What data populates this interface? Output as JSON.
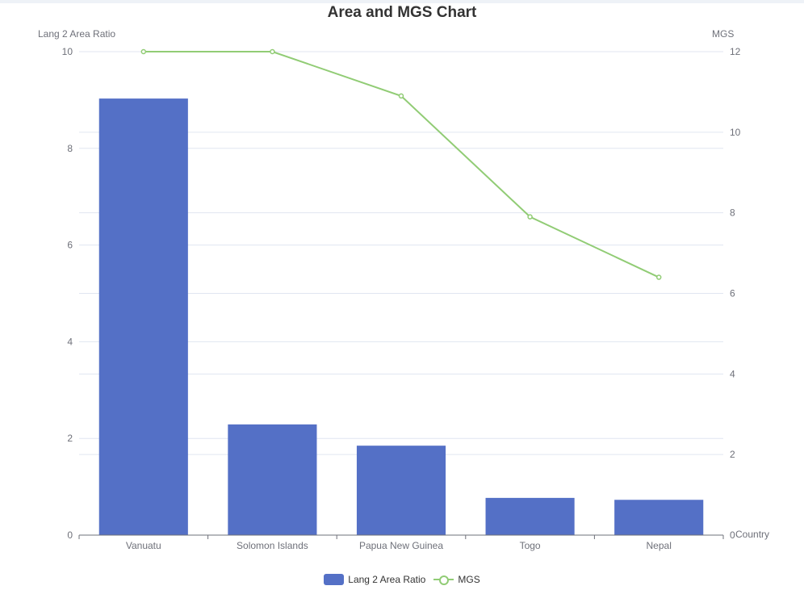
{
  "chart_data": {
    "type": "bar",
    "title": "Area and MGS Chart",
    "xlabel": "Country",
    "categories": [
      "Vanuatu",
      "Solomon Islands",
      "Papua New Guinea",
      "Togo",
      "Nepal"
    ],
    "series": [
      {
        "name": "Lang 2 Area Ratio",
        "type": "bar",
        "axis": "left",
        "color": "#5470c6",
        "values": [
          9.03,
          2.29,
          1.85,
          0.77,
          0.73
        ]
      },
      {
        "name": "MGS",
        "type": "line",
        "axis": "right",
        "color": "#91cc75",
        "values": [
          12.0,
          12.0,
          10.9,
          7.9,
          6.4
        ]
      }
    ],
    "y_left": {
      "label": "Lang 2 Area Ratio",
      "ylim": [
        0,
        10
      ],
      "ticks": [
        0,
        2,
        4,
        6,
        8,
        10
      ]
    },
    "y_right": {
      "label": "MGS",
      "ylim": [
        0,
        12
      ],
      "ticks": [
        0,
        2,
        4,
        6,
        8,
        10,
        12
      ]
    },
    "grid": true,
    "legend_position": "bottom-center"
  }
}
